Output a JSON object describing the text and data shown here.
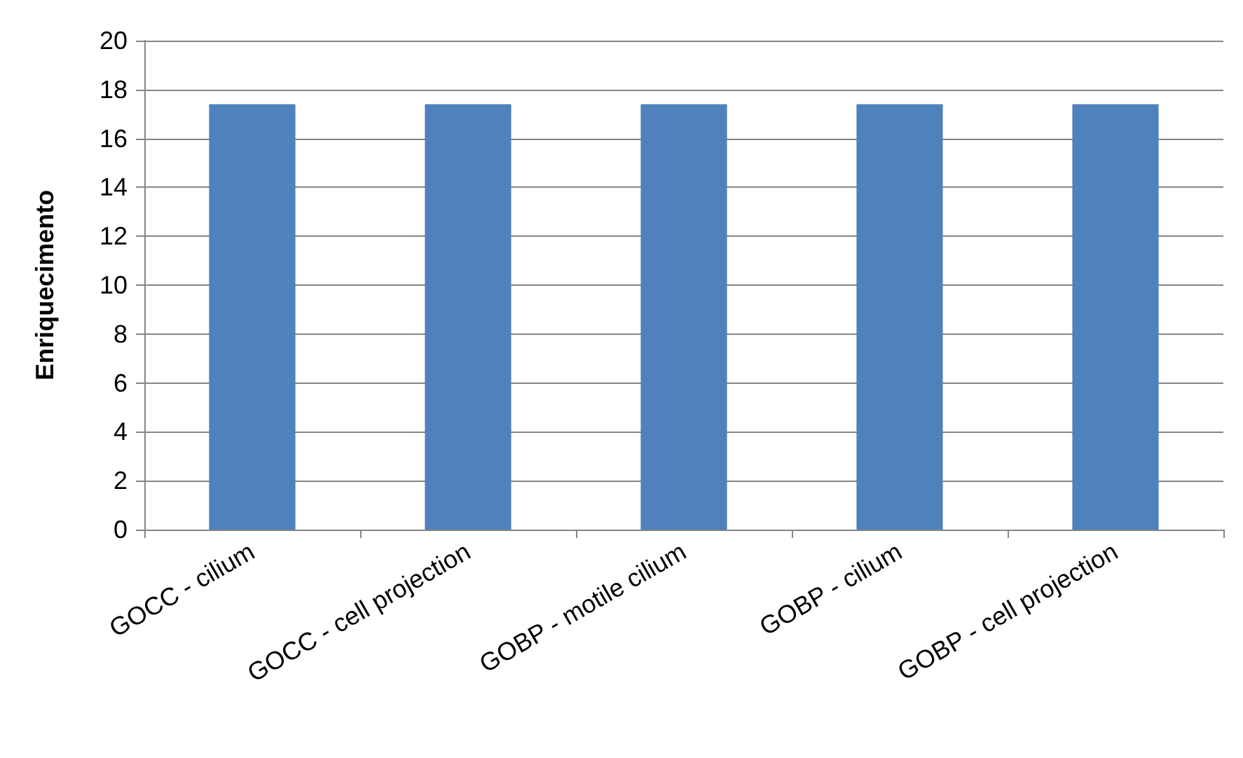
{
  "chart_data": {
    "type": "bar",
    "ylabel": "Enriquecimento",
    "categories": [
      "GOCC - cilium",
      "GOCC - cell projection",
      "GOBP - motile cilium",
      "GOBP - cilium",
      "GOBP - cell projection"
    ],
    "values": [
      17.4,
      17.4,
      17.4,
      17.4,
      17.4
    ],
    "color": "#4f81bd",
    "ylim": [
      0,
      20
    ],
    "yticks": [
      0,
      2,
      4,
      6,
      8,
      10,
      12,
      14,
      16,
      18,
      20
    ],
    "grid": "y"
  }
}
